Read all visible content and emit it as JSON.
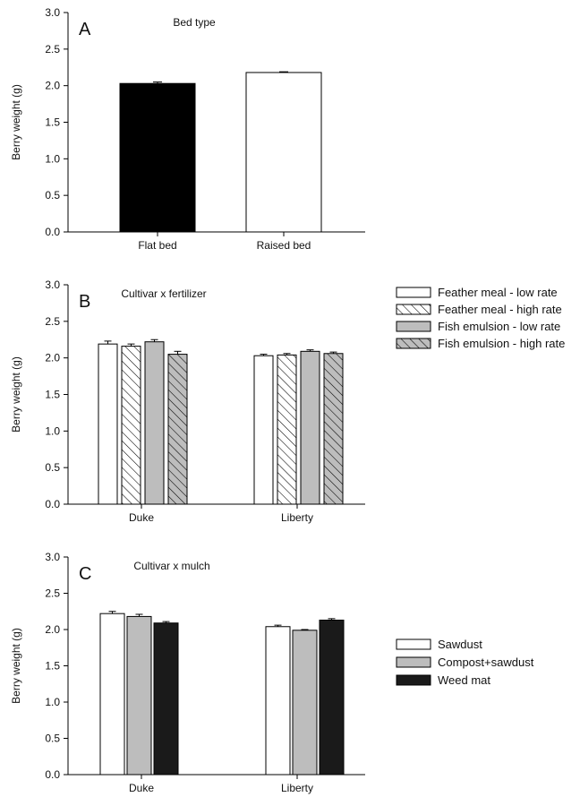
{
  "chart_data": [
    {
      "type": "bar",
      "panel_label": "A",
      "title": "Bed type",
      "ylabel": "Berry weight (g)",
      "xlabel": "",
      "ylim": [
        0,
        3.0
      ],
      "yticks": [
        "0.0",
        "0.5",
        "1.0",
        "1.5",
        "2.0",
        "2.5",
        "3.0"
      ],
      "categories": [
        "Flat bed",
        "Raised bed"
      ],
      "series": [
        {
          "values": [
            2.03,
            2.18
          ],
          "errors": [
            0.02,
            0.01
          ],
          "colors": [
            "#000000",
            "#ffffff"
          ]
        }
      ],
      "grid": false
    },
    {
      "type": "bar",
      "panel_label": "B",
      "title": "Cultivar x fertilizer",
      "ylabel": "Berry weight (g)",
      "xlabel": "",
      "ylim": [
        0,
        3.0
      ],
      "yticks": [
        "0.0",
        "0.5",
        "1.0",
        "1.5",
        "2.0",
        "2.5",
        "3.0"
      ],
      "categories": [
        "Duke",
        "Liberty"
      ],
      "legend_position": "right",
      "series": [
        {
          "name": "Feather meal - low rate",
          "values": [
            2.19,
            2.03
          ],
          "errors": [
            0.04,
            0.02
          ],
          "fill": "#ffffff",
          "hatch": false
        },
        {
          "name": "Feather meal - high rate",
          "values": [
            2.16,
            2.04
          ],
          "errors": [
            0.03,
            0.02
          ],
          "fill": "#ffffff",
          "hatch": true
        },
        {
          "name": "Fish emulsion - low rate",
          "values": [
            2.22,
            2.09
          ],
          "errors": [
            0.03,
            0.02
          ],
          "fill": "#bdbdbd",
          "hatch": false
        },
        {
          "name": "Fish emulsion - high rate",
          "values": [
            2.05,
            2.06
          ],
          "errors": [
            0.04,
            0.02
          ],
          "fill": "#bdbdbd",
          "hatch": true
        }
      ],
      "grid": false
    },
    {
      "type": "bar",
      "panel_label": "C",
      "title": "Cultivar x mulch",
      "ylabel": "Berry weight (g)",
      "xlabel": "",
      "ylim": [
        0,
        3.0
      ],
      "yticks": [
        "0.0",
        "0.5",
        "1.0",
        "1.5",
        "2.0",
        "2.5",
        "3.0"
      ],
      "categories": [
        "Duke",
        "Liberty"
      ],
      "legend_position": "right",
      "series": [
        {
          "name": "Sawdust",
          "values": [
            2.22,
            2.04
          ],
          "errors": [
            0.03,
            0.02
          ],
          "fill": "#ffffff",
          "hatch": false
        },
        {
          "name": "Compost+sawdust",
          "values": [
            2.18,
            1.99
          ],
          "errors": [
            0.03,
            0.01
          ],
          "fill": "#bdbdbd",
          "hatch": false
        },
        {
          "name": "Weed mat",
          "values": [
            2.09,
            2.13
          ],
          "errors": [
            0.02,
            0.02
          ],
          "fill": "#1a1a1a",
          "hatch": false
        }
      ],
      "grid": false
    }
  ]
}
